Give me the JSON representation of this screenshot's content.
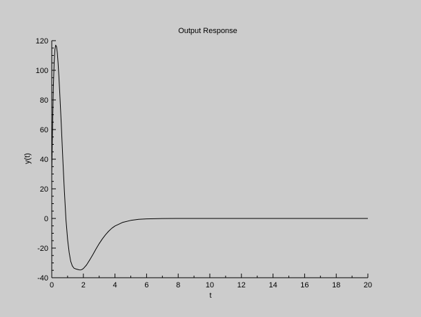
{
  "chart_data": {
    "type": "line",
    "title": "Output Response",
    "xlabel": "t",
    "ylabel": "y(t)",
    "xlim": [
      0,
      20
    ],
    "ylim": [
      -40,
      120
    ],
    "xticks": [
      0,
      2,
      4,
      6,
      8,
      10,
      12,
      14,
      16,
      18,
      20
    ],
    "yticks": [
      -40,
      -20,
      0,
      20,
      40,
      60,
      80,
      100,
      120
    ],
    "grid": false,
    "legend": "none",
    "line_color": "#000000",
    "series": [
      {
        "x": [
          0,
          0.05,
          0.1,
          0.15,
          0.2,
          0.25,
          0.3,
          0.35,
          0.4,
          0.45,
          0.5,
          0.6,
          0.7,
          0.8,
          0.9,
          1.0,
          1.1,
          1.2,
          1.3,
          1.4,
          1.5,
          1.6,
          1.7,
          1.8,
          1.9,
          2.0,
          2.2,
          2.4,
          2.6,
          2.8,
          3.0,
          3.2,
          3.4,
          3.6,
          3.8,
          4.0,
          4.5,
          5.0,
          5.5,
          6.0,
          6.5,
          7.0,
          8.0,
          9.0,
          10,
          12,
          14,
          16,
          18,
          20
        ],
        "y": [
          30,
          62,
          88,
          105,
          114,
          117,
          116,
          112,
          105,
          96,
          86,
          64,
          40,
          18,
          -1,
          -14,
          -23,
          -29,
          -32,
          -33.5,
          -34,
          -34.3,
          -34.6,
          -34.8,
          -34.5,
          -33.8,
          -31.4,
          -28,
          -24.4,
          -20.6,
          -17,
          -13.8,
          -11,
          -8.6,
          -6.6,
          -5.1,
          -2.6,
          -1.3,
          -0.6,
          -0.3,
          -0.15,
          -0.07,
          -0.02,
          -0.005,
          0,
          0,
          0,
          0,
          0,
          0
        ]
      }
    ]
  }
}
